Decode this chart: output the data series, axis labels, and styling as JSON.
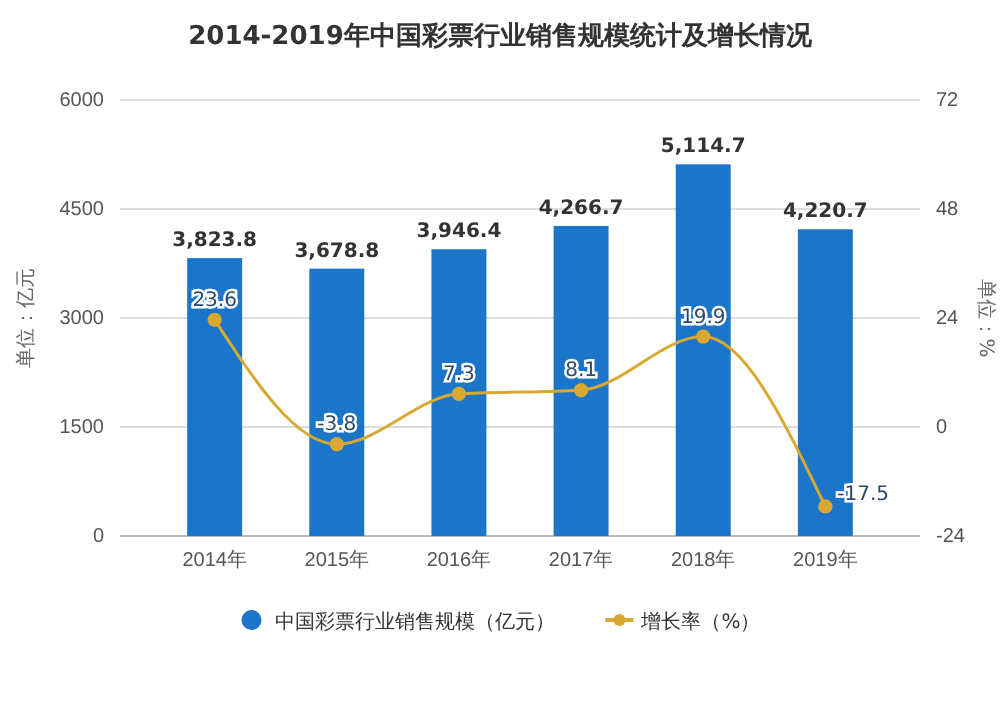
{
  "chart_data": {
    "type": "bar",
    "title": "2014-2019年中国彩票行业销售规模统计及增长情况",
    "ylabel": "单位：亿元",
    "y2label": "单位：%",
    "categories": [
      "2014年",
      "2015年",
      "2016年",
      "2017年",
      "2018年",
      "2019年"
    ],
    "series": [
      {
        "name": "中国彩票行业销售规模（亿元）",
        "color": "#1b75c9",
        "values": [
          3823.8,
          3678.8,
          3946.4,
          4266.7,
          5114.7,
          4220.7
        ],
        "value_labels": [
          "3,823.8",
          "3,678.8",
          "3,946.4",
          "4,266.7",
          "5,114.7",
          "4,220.7"
        ]
      },
      {
        "name": "增长率（%）",
        "type": "line",
        "axis": "y2",
        "color": "#d9a830",
        "values": [
          23.6,
          -3.8,
          7.3,
          8.1,
          19.9,
          -17.5
        ],
        "value_labels": [
          "23.6",
          "-3.8",
          "7.3",
          "8.1",
          "19.9",
          "-17.5"
        ]
      }
    ],
    "ylim": [
      0,
      6000
    ],
    "yticks": [
      0,
      1500,
      3000,
      4500,
      6000
    ],
    "y2lim": [
      -24,
      72
    ],
    "y2ticks": [
      -24,
      0,
      24,
      48,
      72
    ],
    "grid": "y",
    "legend": "bottom",
    "marker": "circle"
  }
}
